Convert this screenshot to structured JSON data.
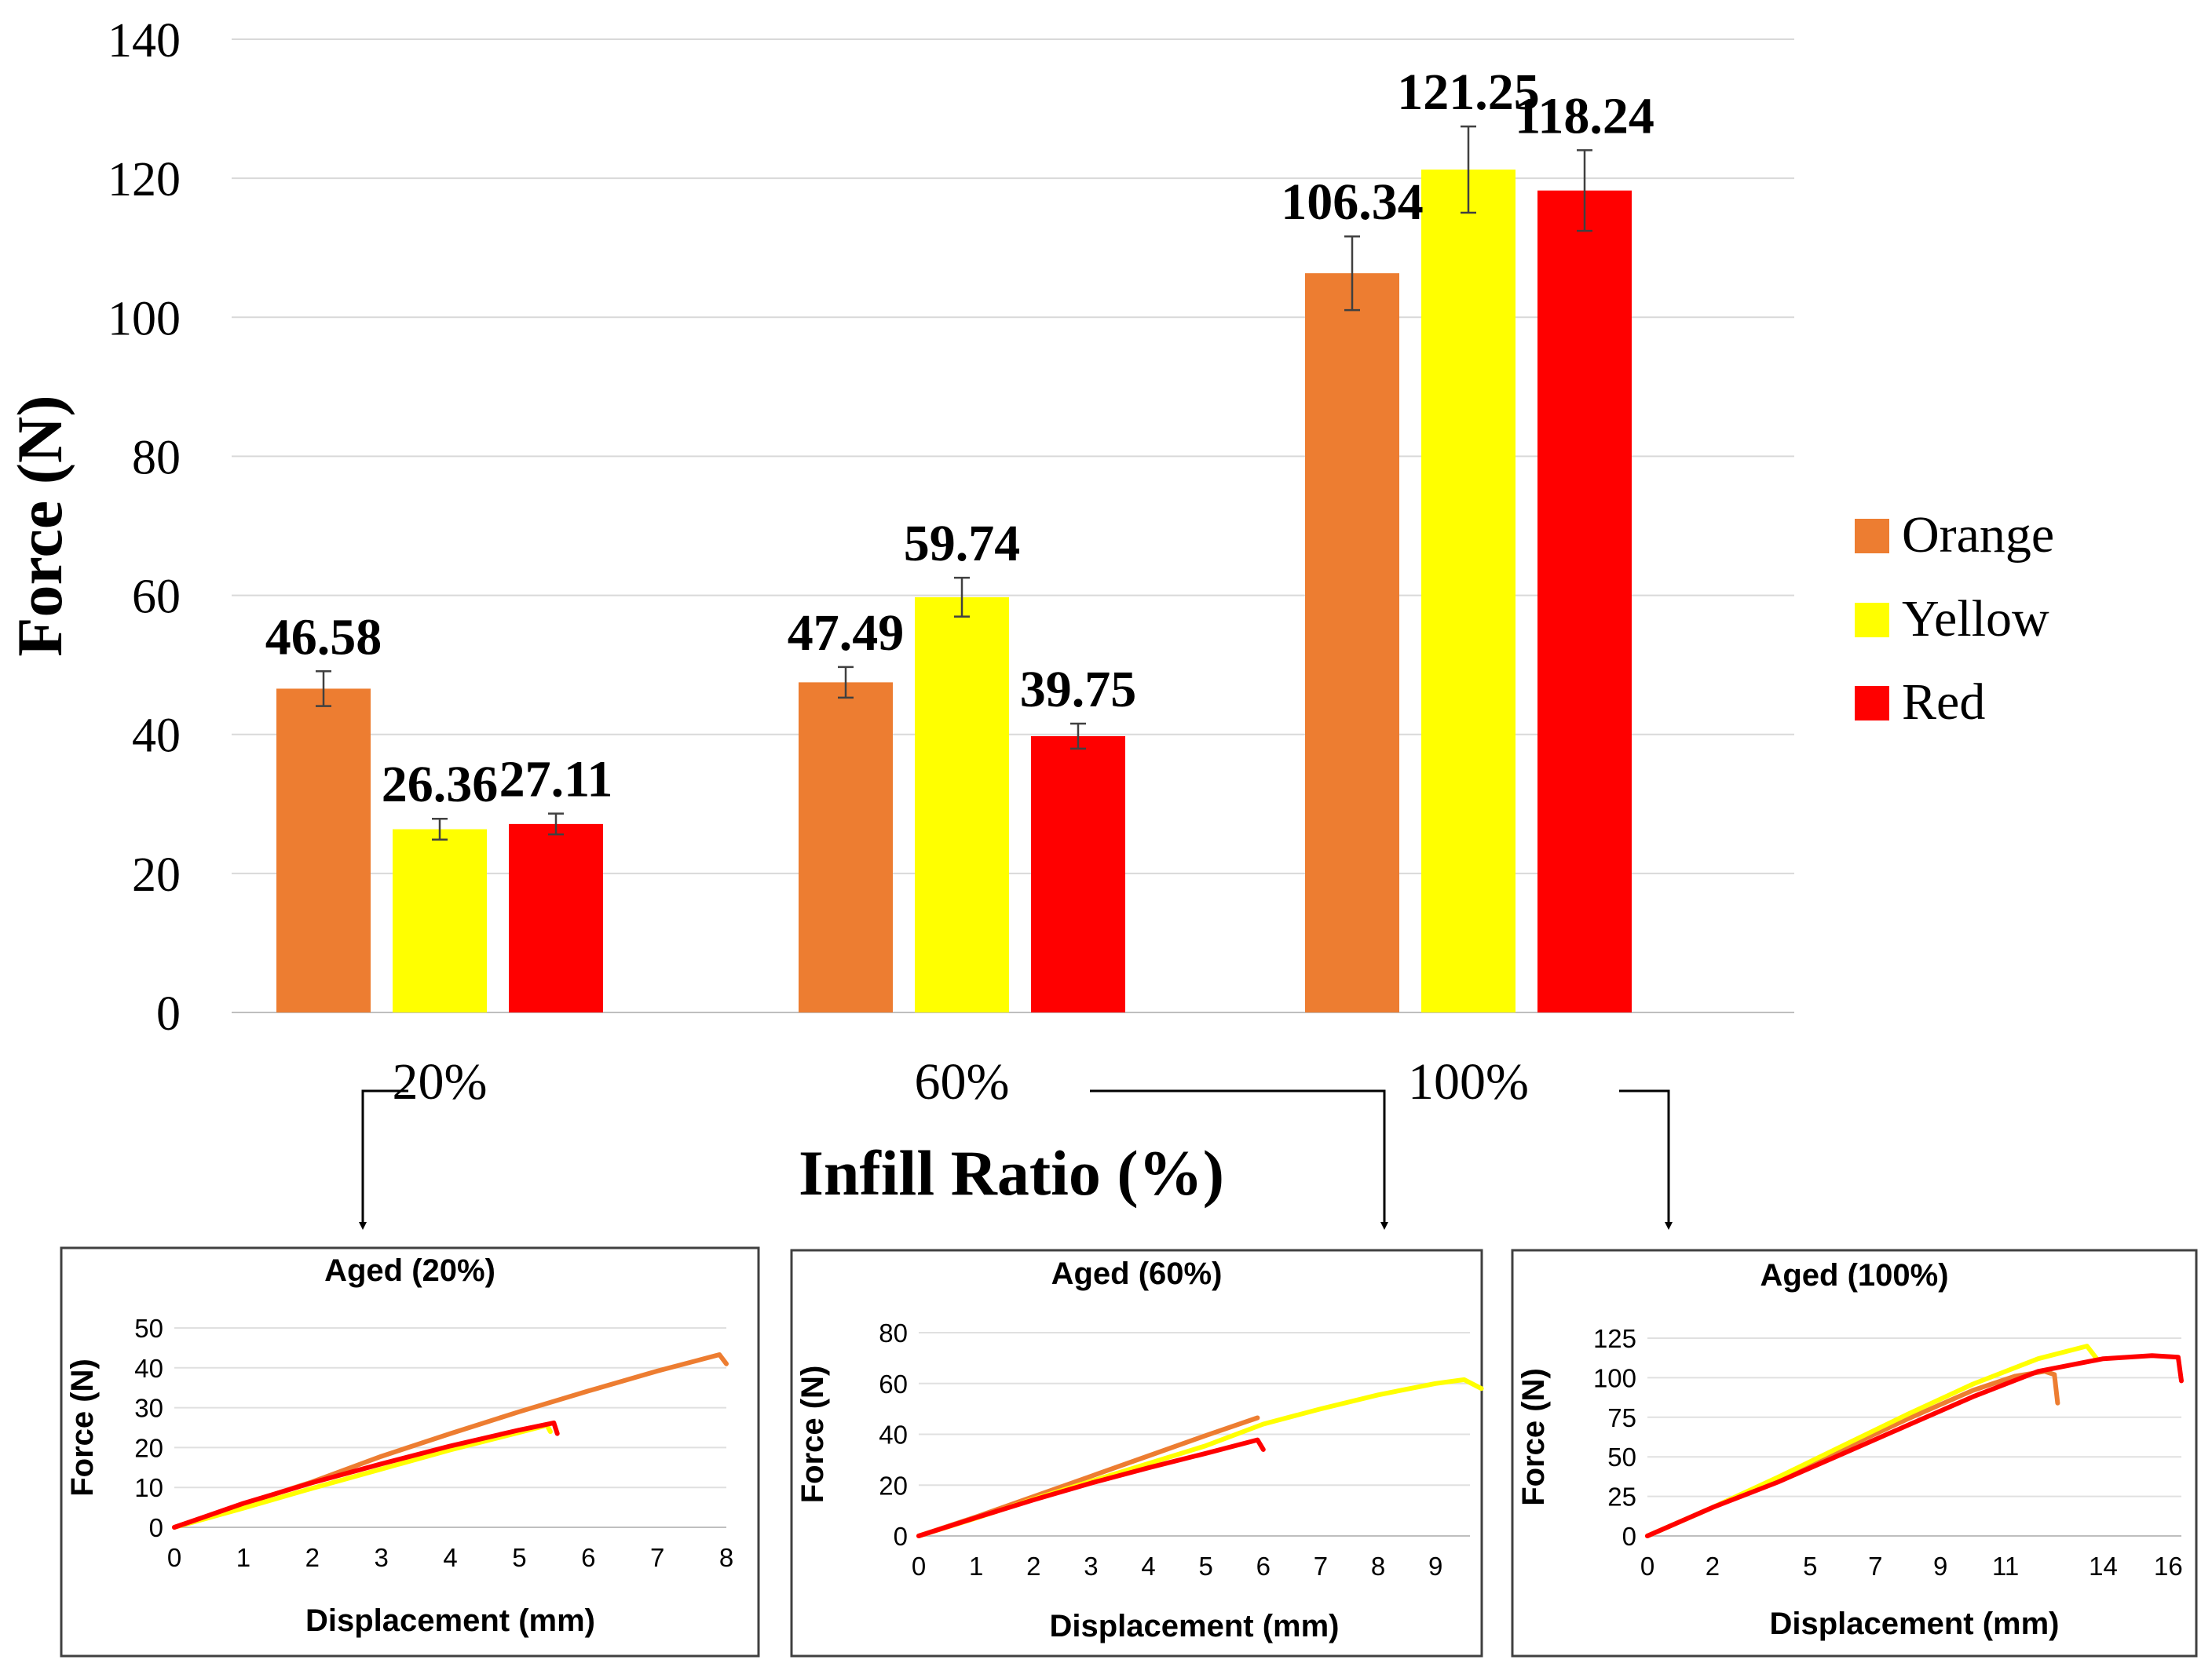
{
  "chart_data": [
    {
      "type": "bar",
      "title": "",
      "xlabel": "Infill Ratio (%)",
      "ylabel": "Force (N)",
      "ylim": [
        0,
        140
      ],
      "yticks": [
        0,
        20,
        40,
        60,
        80,
        100,
        120,
        140
      ],
      "grid": true,
      "legend": "right",
      "categories": [
        "20%",
        "60%",
        "100%"
      ],
      "series": [
        {
          "name": "Orange",
          "color": "#ED7D31",
          "values": [
            46.58,
            47.49,
            106.34
          ],
          "labels": [
            "46.58",
            "47.49",
            "106.34"
          ],
          "errors": [
            2.5,
            2.2,
            5.3
          ]
        },
        {
          "name": "Yellow",
          "color": "#FFFF00",
          "values": [
            26.36,
            59.74,
            121.25
          ],
          "labels": [
            "26.36",
            "59.74",
            "121.25"
          ],
          "errors": [
            1.5,
            2.8,
            6.2
          ]
        },
        {
          "name": "Red",
          "color": "#FF0000",
          "values": [
            27.11,
            39.75,
            118.24
          ],
          "labels": [
            "27.11",
            "39.75",
            "118.24"
          ],
          "errors": [
            1.5,
            1.8,
            5.8
          ]
        }
      ]
    },
    {
      "type": "line",
      "title": "Aged (20%)",
      "xlabel": "Displacement (mm)",
      "ylabel": "Force (N)",
      "xlim": [
        0,
        8
      ],
      "ylim": [
        0,
        50
      ],
      "xticks": [
        0,
        1,
        2,
        3,
        4,
        5,
        6,
        7,
        8
      ],
      "yticks": [
        0,
        10,
        20,
        30,
        40,
        50
      ],
      "series": [
        {
          "name": "Orange",
          "color": "#ED7D31",
          "x": [
            0,
            1,
            2,
            3,
            4,
            5,
            6,
            7,
            7.9,
            8.0
          ],
          "y": [
            0,
            5.8,
            11.4,
            17.8,
            23.5,
            29,
            34.2,
            39.2,
            43.3,
            41
          ]
        },
        {
          "name": "Yellow",
          "color": "#FFFF00",
          "x": [
            0,
            1,
            2,
            3,
            4,
            5,
            5.4,
            5.45
          ],
          "y": [
            0,
            4.8,
            9.8,
            14.6,
            19.4,
            23.8,
            25.6,
            24
          ]
        },
        {
          "name": "Red",
          "color": "#FF0000",
          "x": [
            0,
            1,
            2,
            3,
            4,
            5,
            5.5,
            5.55
          ],
          "y": [
            0,
            6,
            11.2,
            15.9,
            20.4,
            24.4,
            26.2,
            23.5
          ]
        }
      ]
    },
    {
      "type": "line",
      "title": "Aged (60%)",
      "xlabel": "Displacement (mm)",
      "ylabel": "Force (N)",
      "xlim": [
        0,
        9.6
      ],
      "ylim": [
        0,
        80
      ],
      "xticks": [
        0,
        1,
        2,
        3,
        4,
        5,
        6,
        7,
        8,
        9
      ],
      "yticks": [
        0,
        20,
        40,
        60,
        80
      ],
      "series": [
        {
          "name": "Orange",
          "color": "#ED7D31",
          "x": [
            0,
            1,
            2,
            3,
            4,
            5,
            5.9
          ],
          "y": [
            0,
            7.5,
            15.5,
            23.5,
            31.5,
            39.5,
            46.5
          ]
        },
        {
          "name": "Yellow",
          "color": "#FFFF00",
          "x": [
            0,
            1,
            2,
            3,
            4,
            5,
            6,
            7,
            8,
            9,
            9.5,
            9.8
          ],
          "y": [
            0,
            7,
            14.5,
            21.5,
            28.5,
            35.5,
            44,
            50,
            55.5,
            60,
            61.5,
            58
          ]
        },
        {
          "name": "Red",
          "color": "#FF0000",
          "x": [
            0,
            1,
            2,
            3,
            4,
            5,
            5.9,
            6.0
          ],
          "y": [
            0,
            7.2,
            14.2,
            20.8,
            26.8,
            32.5,
            37.8,
            34
          ]
        }
      ]
    },
    {
      "type": "line",
      "title": "Aged (100%)",
      "xlabel": "Displacement (mm)",
      "ylabel": "Force (N)",
      "xlim": [
        0,
        16.4
      ],
      "ylim": [
        0,
        125
      ],
      "xticks": [
        0,
        2,
        5,
        7,
        9,
        11,
        14,
        16
      ],
      "yticks": [
        0,
        25,
        50,
        75,
        100,
        125
      ],
      "series": [
        {
          "name": "Orange",
          "color": "#ED7D31",
          "x": [
            0,
            2,
            4,
            6,
            8,
            10,
            11.3,
            12.2,
            12.5,
            12.6
          ],
          "y": [
            0,
            18,
            36,
            55,
            74,
            92,
            101,
            104,
            102,
            84
          ]
        },
        {
          "name": "Yellow",
          "color": "#FFFF00",
          "x": [
            0,
            2,
            4,
            6,
            8,
            10,
            12,
            13.5,
            13.8
          ],
          "y": [
            0,
            18,
            37,
            57,
            77,
            96,
            112,
            120,
            112
          ]
        },
        {
          "name": "Red",
          "color": "#FF0000",
          "x": [
            0,
            2,
            4,
            6,
            8,
            10,
            12,
            14,
            15.5,
            16.3,
            16.4
          ],
          "y": [
            0,
            18,
            34,
            52,
            70,
            88,
            104,
            112,
            114,
            113,
            98
          ]
        }
      ]
    }
  ]
}
